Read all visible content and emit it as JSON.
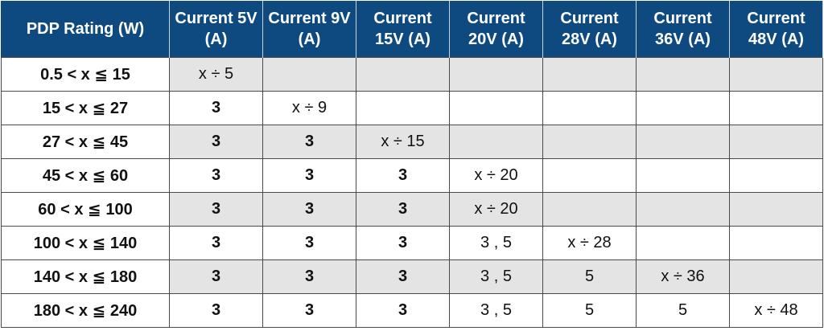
{
  "table": {
    "header": [
      "PDP Rating (W)",
      "Current 5V (A)",
      "Current 9V (A)",
      "Current 15V (A)",
      "Current 20V (A)",
      "Current 28V (A)",
      "Current 36V (A)",
      "Current 48V (A)"
    ],
    "rows": [
      [
        "0.5 < x ≦ 15",
        "x ÷ 5",
        null,
        null,
        null,
        null,
        null,
        null
      ],
      [
        "15 < x ≦ 27",
        "3",
        "x ÷ 9",
        null,
        null,
        null,
        null,
        null
      ],
      [
        "27 < x ≦ 45",
        "3",
        "3",
        "x ÷ 15",
        null,
        null,
        null,
        null
      ],
      [
        "45 < x ≦ 60",
        "3",
        "3",
        "3",
        "x ÷ 20",
        null,
        null,
        null
      ],
      [
        "60 < x ≦ 100",
        "3",
        "3",
        "3",
        "x ÷ 20",
        null,
        null,
        null
      ],
      [
        "100 < x ≦ 140",
        "3",
        "3",
        "3",
        "3 , 5",
        "x ÷ 28",
        null,
        null
      ],
      [
        "140 < x ≦ 180",
        "3",
        "3",
        "3",
        "3 , 5",
        "5",
        "x ÷ 36",
        null
      ],
      [
        "180 < x ≦ 240",
        "3",
        "3",
        "3",
        "3 , 5",
        "5",
        "5",
        "x ÷ 48"
      ]
    ]
  }
}
